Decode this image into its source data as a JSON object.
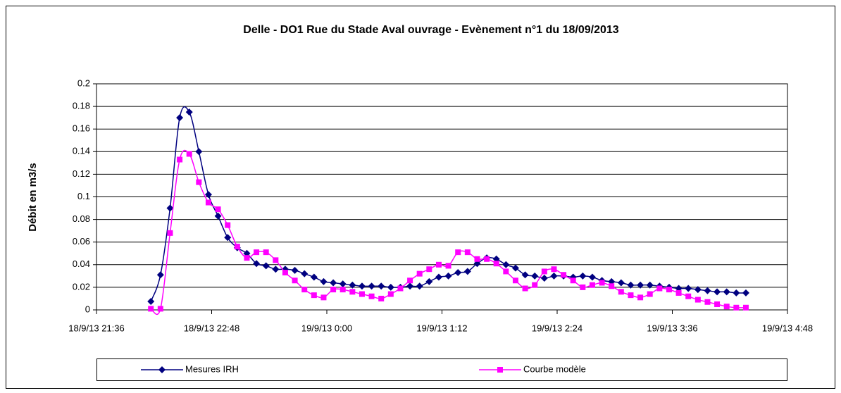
{
  "chart_data": {
    "type": "line",
    "title": "Delle - DO1 Rue du Stade Aval ouvrage - Evènement n°1 du 18/09/2013",
    "y_label": "Débit en m3/s",
    "x": [
      "2013-09-18T22:10",
      "2013-09-18T22:16",
      "2013-09-18T22:22",
      "2013-09-18T22:28",
      "2013-09-18T22:34",
      "2013-09-18T22:40",
      "2013-09-18T22:46",
      "2013-09-18T22:52",
      "2013-09-18T22:58",
      "2013-09-18T23:04",
      "2013-09-18T23:10",
      "2013-09-18T23:16",
      "2013-09-18T23:22",
      "2013-09-18T23:28",
      "2013-09-18T23:34",
      "2013-09-18T23:40",
      "2013-09-18T23:46",
      "2013-09-18T23:52",
      "2013-09-18T23:58",
      "2013-09-19T00:04",
      "2013-09-19T00:10",
      "2013-09-19T00:16",
      "2013-09-19T00:22",
      "2013-09-19T00:28",
      "2013-09-19T00:34",
      "2013-09-19T00:40",
      "2013-09-19T00:46",
      "2013-09-19T00:52",
      "2013-09-19T00:58",
      "2013-09-19T01:04",
      "2013-09-19T01:10",
      "2013-09-19T01:16",
      "2013-09-19T01:22",
      "2013-09-19T01:28",
      "2013-09-19T01:34",
      "2013-09-19T01:40",
      "2013-09-19T01:46",
      "2013-09-19T01:52",
      "2013-09-19T01:58",
      "2013-09-19T02:04",
      "2013-09-19T02:10",
      "2013-09-19T02:16",
      "2013-09-19T02:22",
      "2013-09-19T02:28",
      "2013-09-19T02:34",
      "2013-09-19T02:40",
      "2013-09-19T02:46",
      "2013-09-19T02:52",
      "2013-09-19T02:58",
      "2013-09-19T03:04",
      "2013-09-19T03:10",
      "2013-09-19T03:16",
      "2013-09-19T03:22",
      "2013-09-19T03:28",
      "2013-09-19T03:34",
      "2013-09-19T03:40",
      "2013-09-19T03:46",
      "2013-09-19T03:52",
      "2013-09-19T03:58",
      "2013-09-19T04:04",
      "2013-09-19T04:10",
      "2013-09-19T04:16",
      "2013-09-19T04:22"
    ],
    "series": [
      {
        "name": "Mesures IRH",
        "color": "#000080",
        "marker": "diamond",
        "values": [
          0.0075,
          0.031,
          0.09,
          0.17,
          0.175,
          0.14,
          0.102,
          0.083,
          0.064,
          0.055,
          0.05,
          0.041,
          0.039,
          0.036,
          0.036,
          0.035,
          0.032,
          0.029,
          0.025,
          0.024,
          0.023,
          0.022,
          0.021,
          0.021,
          0.021,
          0.02,
          0.02,
          0.021,
          0.021,
          0.025,
          0.029,
          0.03,
          0.033,
          0.034,
          0.041,
          0.046,
          0.045,
          0.04,
          0.037,
          0.031,
          0.03,
          0.028,
          0.03,
          0.03,
          0.029,
          0.03,
          0.029,
          0.026,
          0.025,
          0.024,
          0.022,
          0.022,
          0.022,
          0.021,
          0.02,
          0.019,
          0.019,
          0.018,
          0.017,
          0.016,
          0.016,
          0.015,
          0.015
        ]
      },
      {
        "name": "Courbe modèle",
        "color": "#ff00ff",
        "marker": "square",
        "values": [
          0.001,
          0.001,
          0.068,
          0.133,
          0.138,
          0.113,
          0.095,
          0.089,
          0.075,
          0.056,
          0.046,
          0.051,
          0.051,
          0.044,
          0.033,
          0.026,
          0.018,
          0.013,
          0.011,
          0.018,
          0.018,
          0.016,
          0.014,
          0.012,
          0.01,
          0.014,
          0.019,
          0.026,
          0.032,
          0.036,
          0.04,
          0.039,
          0.051,
          0.051,
          0.045,
          0.045,
          0.041,
          0.034,
          0.026,
          0.019,
          0.022,
          0.034,
          0.036,
          0.031,
          0.026,
          0.02,
          0.022,
          0.024,
          0.021,
          0.016,
          0.013,
          0.011,
          0.014,
          0.019,
          0.018,
          0.015,
          0.012,
          0.009,
          0.007,
          0.005,
          0.003,
          0.002,
          0.002
        ]
      }
    ],
    "xlim": [
      "2013-09-18T21:36",
      "2013-09-19T04:48"
    ],
    "xticks": [
      {
        "value": "2013-09-18T21:36",
        "label": "18/9/13 21:36"
      },
      {
        "value": "2013-09-18T22:48",
        "label": "18/9/13 22:48"
      },
      {
        "value": "2013-09-19T00:00",
        "label": "19/9/13 0:00"
      },
      {
        "value": "2013-09-19T01:12",
        "label": "19/9/13 1:12"
      },
      {
        "value": "2013-09-19T02:24",
        "label": "19/9/13 2:24"
      },
      {
        "value": "2013-09-19T03:36",
        "label": "19/9/13 3:36"
      },
      {
        "value": "2013-09-19T04:48",
        "label": "19/9/13 4:48"
      }
    ],
    "ylim": [
      0,
      0.2
    ],
    "yticks": [
      0,
      0.02,
      0.04,
      0.06,
      0.08,
      0.1,
      0.12,
      0.14,
      0.16,
      0.18,
      0.2
    ],
    "grid": true,
    "legend": "bottom"
  }
}
